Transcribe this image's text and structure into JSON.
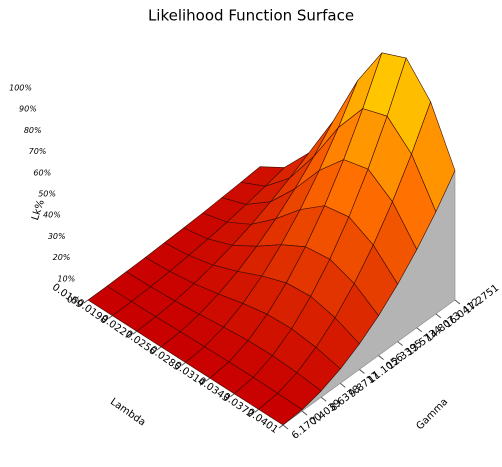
{
  "chart_data": {
    "type": "surface",
    "title": "Likelihood Function Surface",
    "x_label": "Lambda",
    "y_label": "Gamma",
    "z_label": "Lk%",
    "xlim": [
      0.0169,
      0.0401
    ],
    "xticks": [
      0.0169,
      0.0198,
      0.0227,
      0.0256,
      0.0285,
      0.0314,
      0.0343,
      0.0372,
      0.0401
    ],
    "ylim": [
      6.17,
      17.2751
    ],
    "yticks": [
      {
        "value": 6.17,
        "label": "6.1700"
      },
      7.4039,
      8.6378,
      9.8717,
      11.1056,
      12.3395,
      13.5734,
      14.8073,
      16.0412,
      17.2751
    ],
    "zlim": [
      0,
      100
    ],
    "zticks": [
      {
        "value": 0,
        "label": "0%"
      },
      {
        "value": 10,
        "label": "10%"
      },
      {
        "value": 20,
        "label": "20%"
      },
      {
        "value": 30,
        "label": "30%"
      },
      {
        "value": 40,
        "label": "40%"
      },
      {
        "value": 50,
        "label": "50%"
      },
      {
        "value": 60,
        "label": "60%"
      },
      {
        "value": 70,
        "label": "70%"
      },
      {
        "value": 80,
        "label": "80%"
      },
      {
        "value": 90,
        "label": "90%"
      },
      {
        "value": 100,
        "label": "100%"
      }
    ],
    "z": [
      [
        0,
        0,
        0.2,
        0.4,
        0.8,
        1.2,
        1.7,
        2.4,
        3.1,
        3.9
      ],
      [
        0,
        0.1,
        0.5,
        1.2,
        2.2,
        3.4,
        4.8,
        6.6,
        8.6,
        10.9
      ],
      [
        0,
        0.3,
        1.2,
        2.8,
        5.0,
        7.8,
        11.1,
        15.2,
        19.8,
        25.1
      ],
      [
        0,
        0.6,
        2.3,
        5.3,
        9.4,
        14.7,
        21.1,
        28.7,
        37.5,
        47.5
      ],
      [
        0,
        0.9,
        3.6,
        8.2,
        14.6,
        22.8,
        32.8,
        44.7,
        58.4,
        73.9
      ],
      [
        0,
        1.1,
        4.6,
        10.5,
        18.7,
        29.2,
        42.0,
        57.2,
        74.7,
        94.5
      ],
      [
        0,
        1.2,
        4.9,
        11.0,
        19.7,
        30.7,
        44.1,
        60.1,
        78.5,
        99.4
      ],
      [
        0,
        1.0,
        4.2,
        9.6,
        17.0,
        26.6,
        38.2,
        52.1,
        68.0,
        86.1
      ],
      [
        0,
        0.7,
        3.0,
        6.8,
        12.1,
        18.8,
        27.1,
        36.9,
        48.2,
        61.0
      ]
    ]
  }
}
